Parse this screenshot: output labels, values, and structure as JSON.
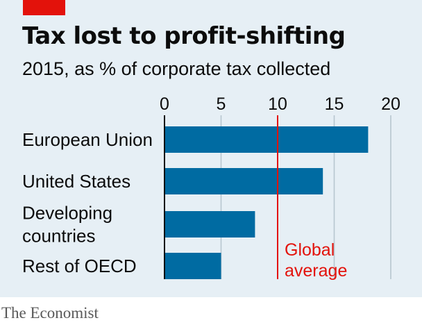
{
  "accent_color": "#e3120b",
  "bar_color": "#006ba2",
  "chart_data": {
    "type": "bar",
    "orientation": "horizontal",
    "title": "Tax lost to profit-shifting",
    "subtitle": "2015, as % of corporate tax collected",
    "categories": [
      [
        "European Union"
      ],
      [
        "United States"
      ],
      [
        "Developing",
        "countries"
      ],
      [
        "Rest of OECD"
      ]
    ],
    "values": [
      18,
      14,
      8,
      5
    ],
    "xlim": [
      0,
      20
    ],
    "xticks": [
      "0",
      "5",
      "10",
      "15",
      "20"
    ],
    "x_axis_position": "top",
    "grid": true,
    "reference_line": {
      "value": 10,
      "label_lines": [
        "Global",
        "average"
      ],
      "color": "#e3120b"
    }
  },
  "source": "The Economist"
}
